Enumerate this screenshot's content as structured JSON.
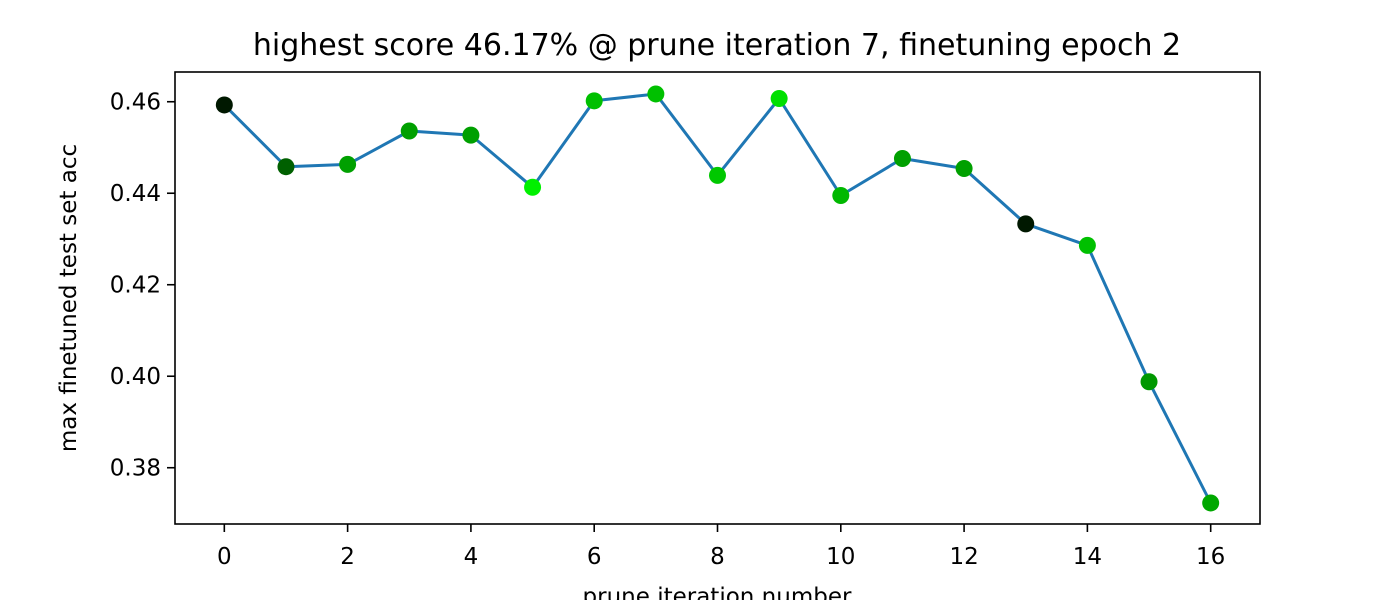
{
  "chart_data": {
    "type": "line",
    "title": "highest score 46.17% @ prune iteration 7, finetuning epoch 2",
    "xlabel": "prune iteration number",
    "ylabel": "max finetuned test set acc",
    "xlim": [
      -0.8,
      16.8
    ],
    "ylim": [
      0.3677,
      0.4665
    ],
    "x_ticks": [
      0,
      2,
      4,
      6,
      8,
      10,
      12,
      14,
      16
    ],
    "x_tick_labels": [
      "0",
      "2",
      "4",
      "6",
      "8",
      "10",
      "12",
      "14",
      "16"
    ],
    "y_ticks": [
      0.38,
      0.4,
      0.42,
      0.44,
      0.46
    ],
    "y_tick_labels": [
      "0.38",
      "0.40",
      "0.42",
      "0.44",
      "0.46"
    ],
    "grid": false,
    "line_color": "#1f77b4",
    "series": [
      {
        "x": [
          0,
          1,
          2,
          3,
          4,
          5,
          6,
          7,
          8,
          9,
          10,
          11,
          12,
          13,
          14,
          15,
          16
        ],
        "y": [
          0.4593,
          0.4458,
          0.4463,
          0.4536,
          0.4527,
          0.4413,
          0.4602,
          0.4617,
          0.4439,
          0.4607,
          0.4395,
          0.4476,
          0.4454,
          0.4333,
          0.4286,
          0.3988,
          0.3723
        ],
        "marker_colors": [
          "#001800",
          "#006000",
          "#00a000",
          "#00a000",
          "#00a000",
          "#00f000",
          "#00c000",
          "#00c000",
          "#00c800",
          "#00e000",
          "#00b800",
          "#00a000",
          "#00a000",
          "#001800",
          "#00c000",
          "#009800",
          "#00a800"
        ]
      }
    ]
  }
}
